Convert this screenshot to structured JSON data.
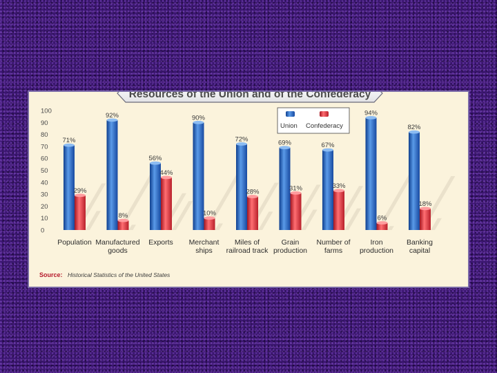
{
  "chart_data": {
    "type": "bar",
    "title": "Resources of the Union and of the Confederacy",
    "categories": [
      [
        "Population"
      ],
      [
        "Manufactured",
        "goods"
      ],
      [
        "Exports"
      ],
      [
        "Merchant",
        "ships"
      ],
      [
        "Miles of",
        "railroad track"
      ],
      [
        "Grain",
        "production"
      ],
      [
        "Number of",
        "farms"
      ],
      [
        "Iron",
        "production"
      ],
      [
        "Banking",
        "capital"
      ]
    ],
    "series": [
      {
        "name": "Union",
        "color": "#2266c0",
        "values": [
          71,
          92,
          56,
          90,
          72,
          69,
          67,
          94,
          82
        ]
      },
      {
        "name": "Confederacy",
        "color": "#e0323c",
        "values": [
          29,
          8,
          44,
          10,
          28,
          31,
          33,
          6,
          18
        ]
      }
    ],
    "value_suffix": "%",
    "ylim": [
      0,
      100
    ],
    "yticks": [
      0,
      10,
      20,
      30,
      40,
      50,
      60,
      70,
      80,
      90,
      100
    ],
    "legend_position": "top-center",
    "source_label": "Source:",
    "source_text": "Historical Statistics of the United States"
  }
}
